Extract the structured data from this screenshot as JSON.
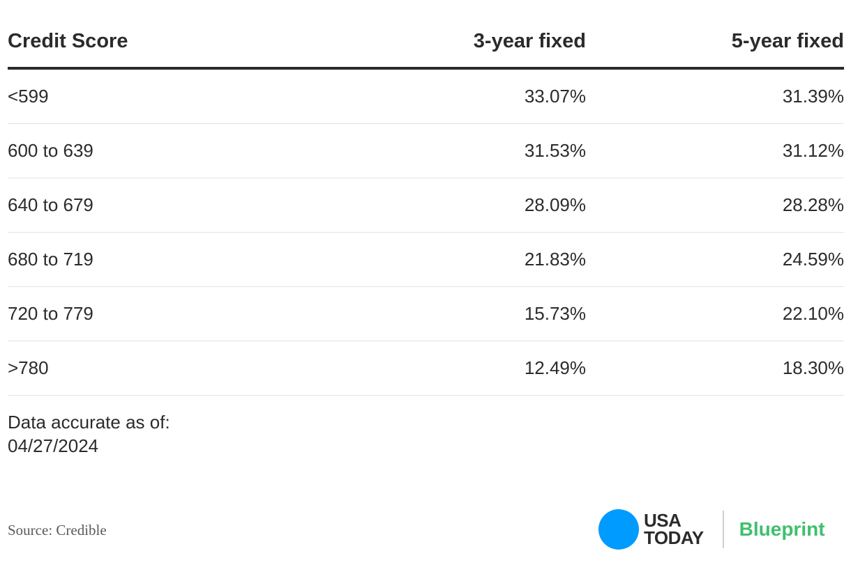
{
  "table": {
    "headers": [
      "Credit Score",
      "3-year fixed",
      "5-year fixed"
    ],
    "rows": [
      [
        "<599",
        "33.07%",
        "31.39%"
      ],
      [
        "600 to 639",
        "31.53%",
        "31.12%"
      ],
      [
        "640 to 679",
        "28.09%",
        "28.28%"
      ],
      [
        "680 to 719",
        "21.83%",
        "24.59%"
      ],
      [
        "720 to 779",
        "15.73%",
        "22.10%"
      ],
      [
        ">780",
        "12.49%",
        "18.30%"
      ]
    ]
  },
  "footnote": {
    "line1": "Data accurate as of:",
    "line2": "04/27/2024"
  },
  "source": "Source: Credible",
  "brand": {
    "logo_line1": "USA",
    "logo_line2": "TODAY",
    "product": "Blueprint",
    "dot_color": "#009bff",
    "product_color": "#3fbf6e"
  }
}
